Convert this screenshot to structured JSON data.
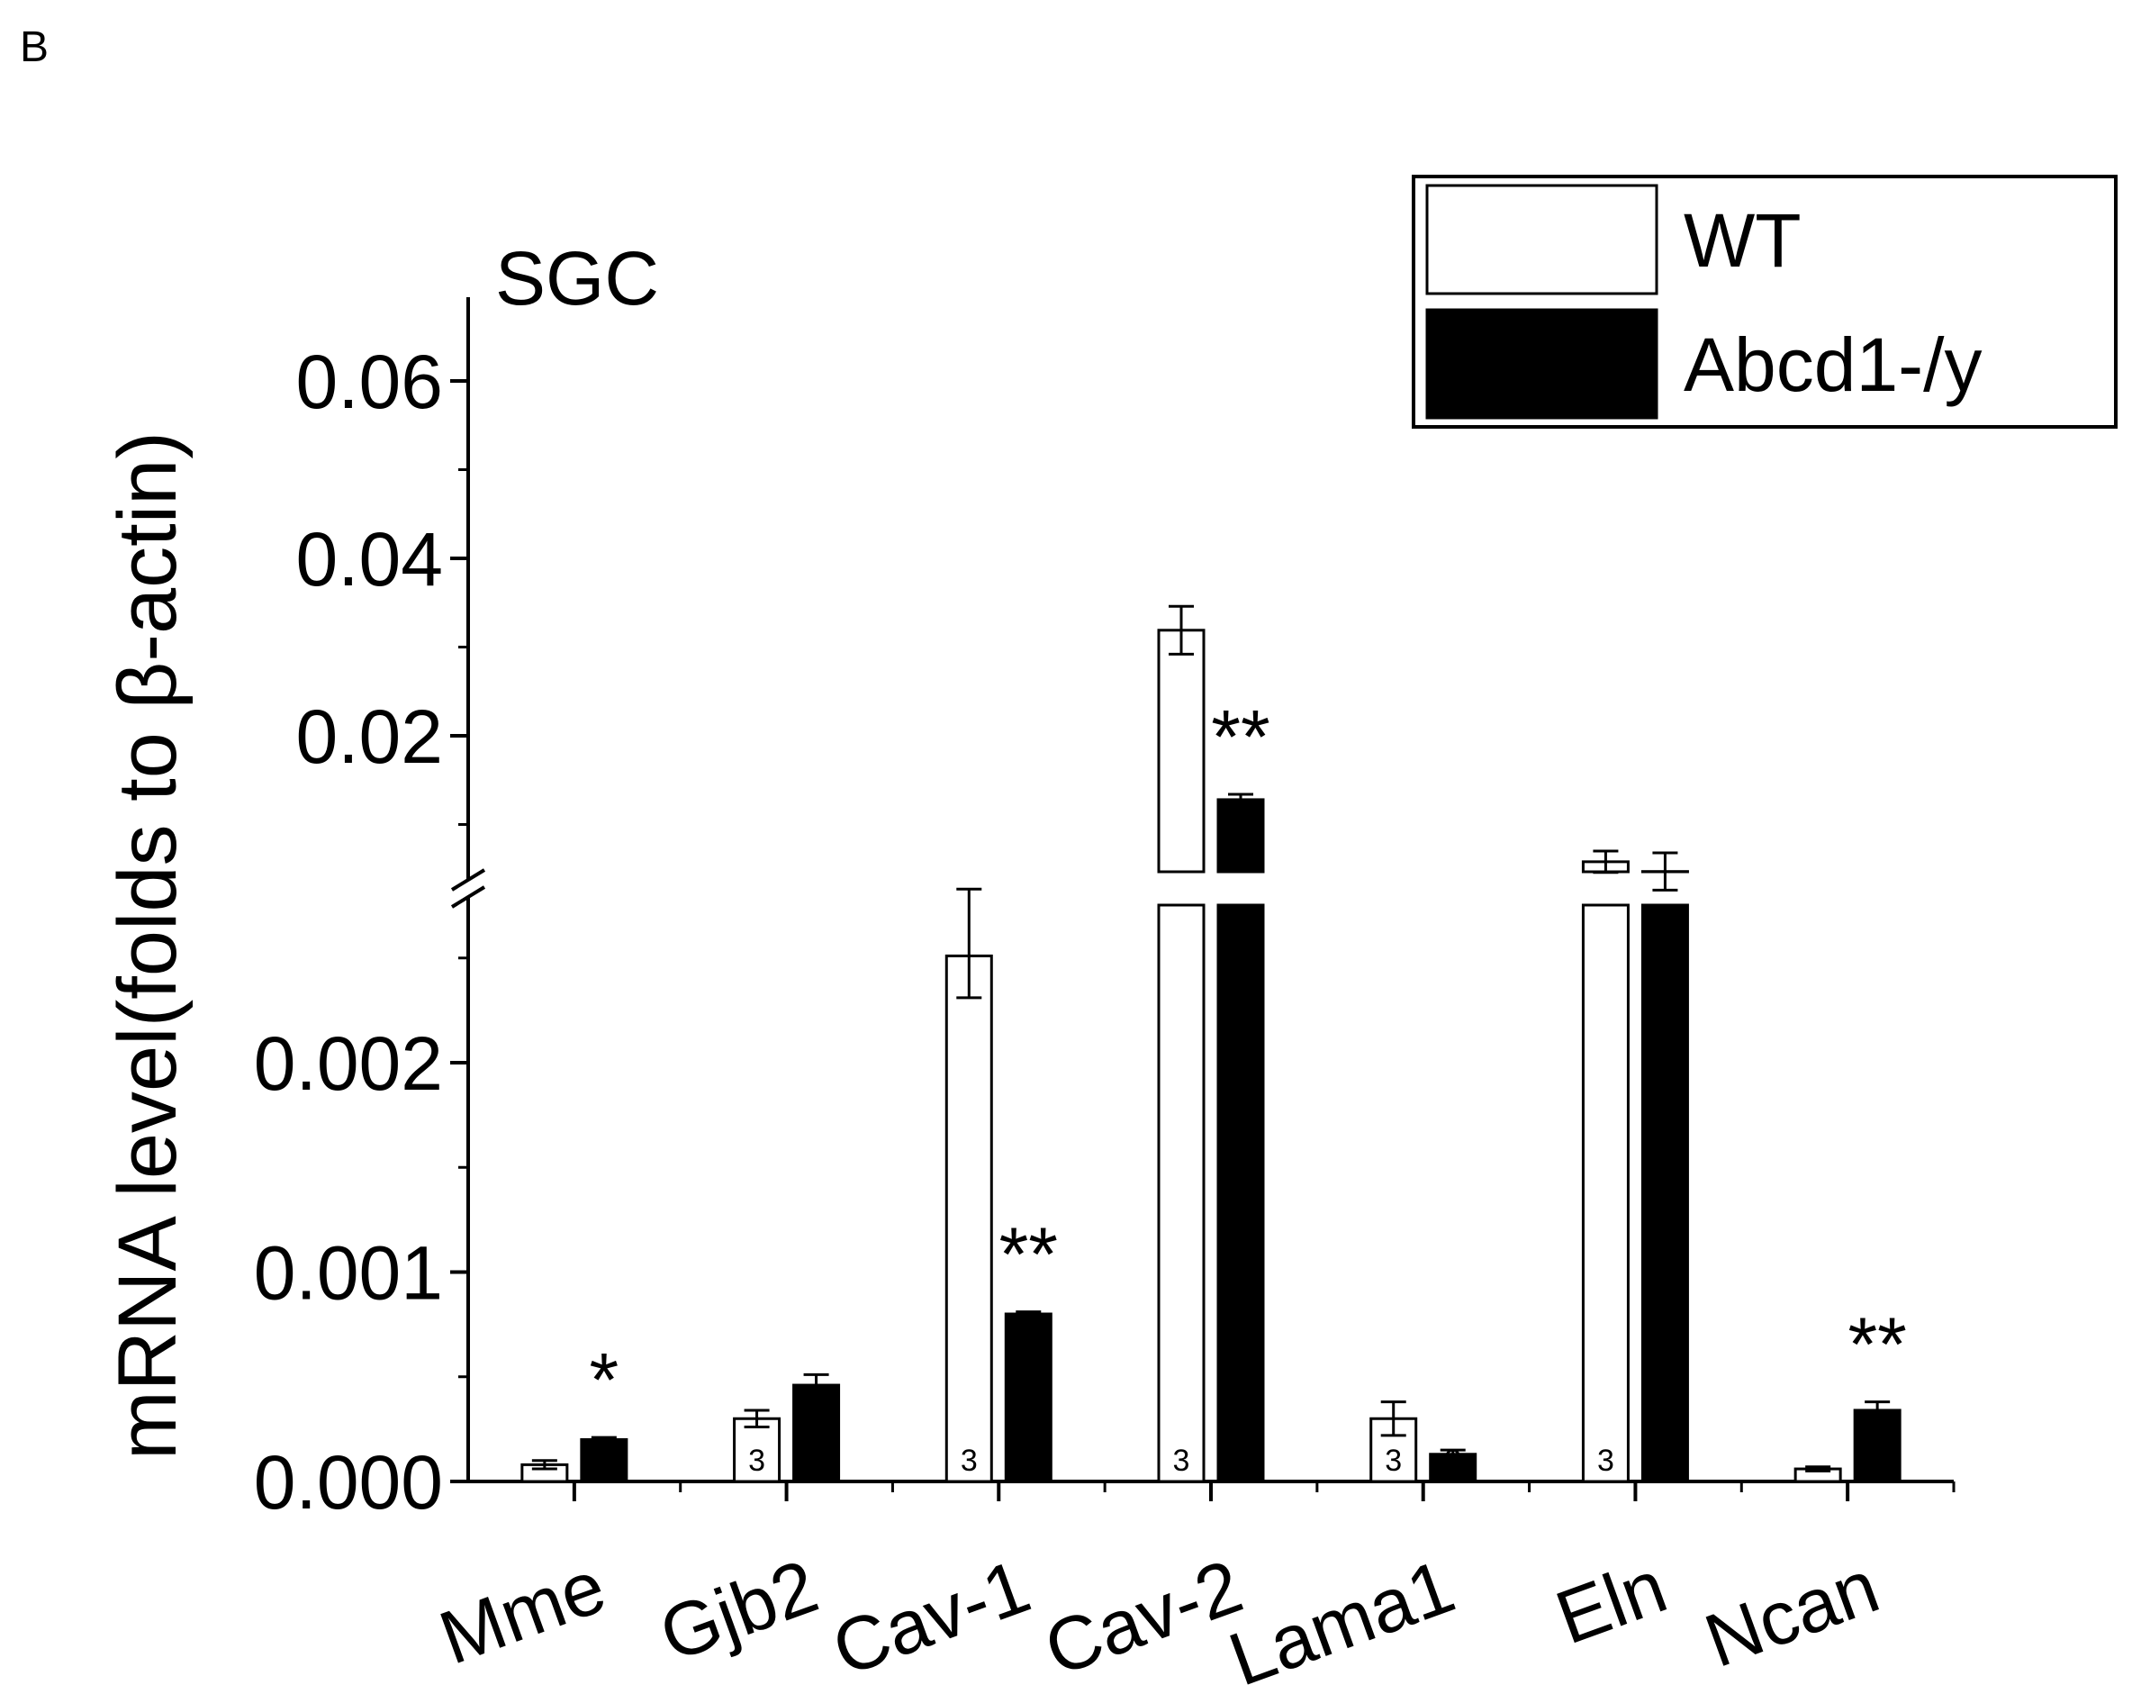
{
  "panel_label": "B",
  "chart_data": {
    "type": "bar",
    "title": "SGC",
    "ylabel": "mRNA level(folds to β-actin)",
    "xlabel": "",
    "categories": [
      "Mme",
      "Gjb2",
      "Cav-1",
      "Cav-2",
      "Lama1",
      "Eln",
      "Ncan"
    ],
    "series": [
      {
        "name": "WT",
        "color": "#ffffff",
        "values": [
          8e-05,
          0.0003,
          0.00251,
          0.0319,
          0.0003,
          0.0058,
          6e-05
        ],
        "errors": [
          2e-05,
          4e-05,
          0.0002,
          0.0027,
          8e-05,
          0.0012,
          1e-05
        ],
        "n_labels": [
          "",
          "3",
          "3",
          "3",
          "3",
          "3",
          ""
        ]
      },
      {
        "name": "Abcd1-/y",
        "color": "#000000",
        "values": [
          0.0002,
          0.00046,
          0.0008,
          0.0128,
          0.00013,
          0.0047,
          0.00034
        ],
        "errors": [
          1e-05,
          5e-05,
          1e-05,
          0.0006,
          2e-05,
          0.0021,
          4e-05
        ],
        "n_labels": [
          "",
          "3",
          "3",
          "3",
          "3",
          "3",
          ""
        ]
      }
    ],
    "significance": [
      "*",
      "",
      "**",
      "**",
      "",
      "",
      "**"
    ],
    "y_axis": {
      "broken": true,
      "lower_segment": {
        "ylim": [
          0,
          0.0026
        ],
        "ticks": [
          "0.000",
          "0.001",
          "0.002"
        ]
      },
      "upper_segment": {
        "ylim": [
          0.0,
          0.07
        ],
        "ticks": [
          "0.02",
          "0.04",
          "0.06"
        ]
      }
    },
    "legend": {
      "position": "top-right",
      "entries": [
        "WT",
        "Abcd1-/y"
      ]
    }
  }
}
